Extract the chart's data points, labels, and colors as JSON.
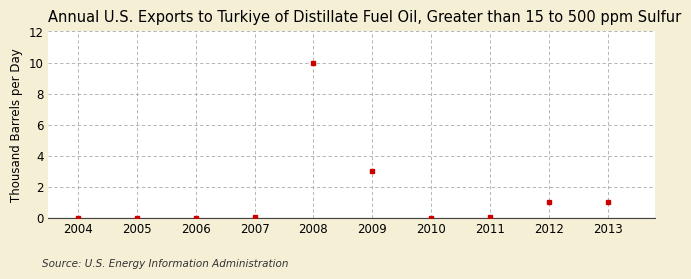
{
  "title": "Annual U.S. Exports to Turkiye of Distillate Fuel Oil, Greater than 15 to 500 ppm Sulfur",
  "ylabel": "Thousand Barrels per Day",
  "source": "Source: U.S. Energy Information Administration",
  "years": [
    2004,
    2005,
    2006,
    2007,
    2008,
    2009,
    2010,
    2011,
    2012,
    2013
  ],
  "values": [
    0.0,
    0.0,
    0.0,
    0.03,
    10.0,
    3.0,
    0.0,
    0.03,
    1.0,
    1.0
  ],
  "xlim": [
    2003.5,
    2013.8
  ],
  "ylim": [
    0,
    12
  ],
  "yticks": [
    0,
    2,
    4,
    6,
    8,
    10,
    12
  ],
  "xticks": [
    2004,
    2005,
    2006,
    2007,
    2008,
    2009,
    2010,
    2011,
    2012,
    2013
  ],
  "dot_color": "#cc0000",
  "fig_bg_color": "#f5efd5",
  "plot_bg_color": "#ffffff",
  "grid_color": "#aaaaaa",
  "title_fontsize": 10.5,
  "label_fontsize": 8.5,
  "tick_fontsize": 8.5,
  "source_fontsize": 7.5
}
